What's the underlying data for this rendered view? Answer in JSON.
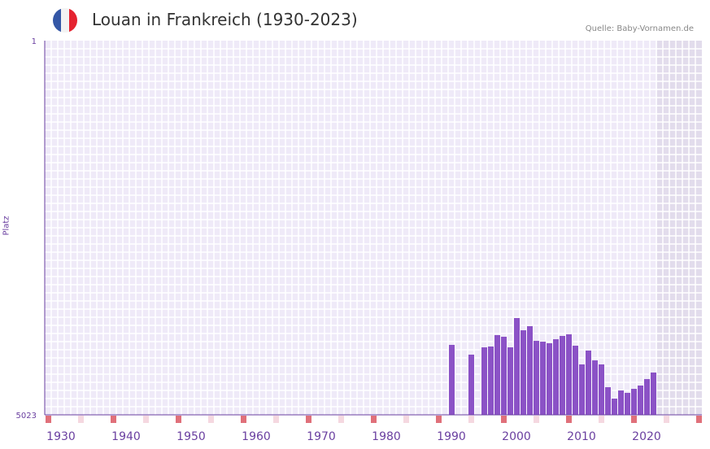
{
  "header": {
    "title": "Louan in Frankreich (1930-2023)",
    "source": "Quelle: Baby-Vornamen.de",
    "flag_colors": [
      "#3457a6",
      "#f3f3f3",
      "#e52330"
    ]
  },
  "chart_data": {
    "type": "bar",
    "title": "Louan in Frankreich (1930-2023)",
    "xlabel": "",
    "ylabel": "Platz",
    "y_inverted": true,
    "ylim": [
      1,
      5023
    ],
    "y_ticks": [
      "1",
      "5023"
    ],
    "x_ticks": [
      "1930",
      "1940",
      "1950",
      "1960",
      "1970",
      "1980",
      "1990",
      "2000",
      "2010",
      "2020"
    ],
    "xlim": [
      1928,
      2028
    ],
    "no_data_from": 2022,
    "bar_color": "#8b52c6",
    "x": [
      1990,
      1993,
      1995,
      1996,
      1997,
      1998,
      1999,
      2000,
      2001,
      2002,
      2003,
      2004,
      2005,
      2006,
      2007,
      2008,
      2009,
      2010,
      2011,
      2012,
      2013,
      2014,
      2015,
      2016,
      2017,
      2018,
      2019,
      2020,
      2021
    ],
    "values": [
      4084,
      4215,
      4117,
      4106,
      3953,
      3975,
      4117,
      3724,
      3888,
      3833,
      4030,
      4041,
      4062,
      4008,
      3964,
      3942,
      4095,
      4346,
      4160,
      4292,
      4346,
      4652,
      4805,
      4696,
      4728,
      4674,
      4630,
      4543,
      4455
    ]
  }
}
